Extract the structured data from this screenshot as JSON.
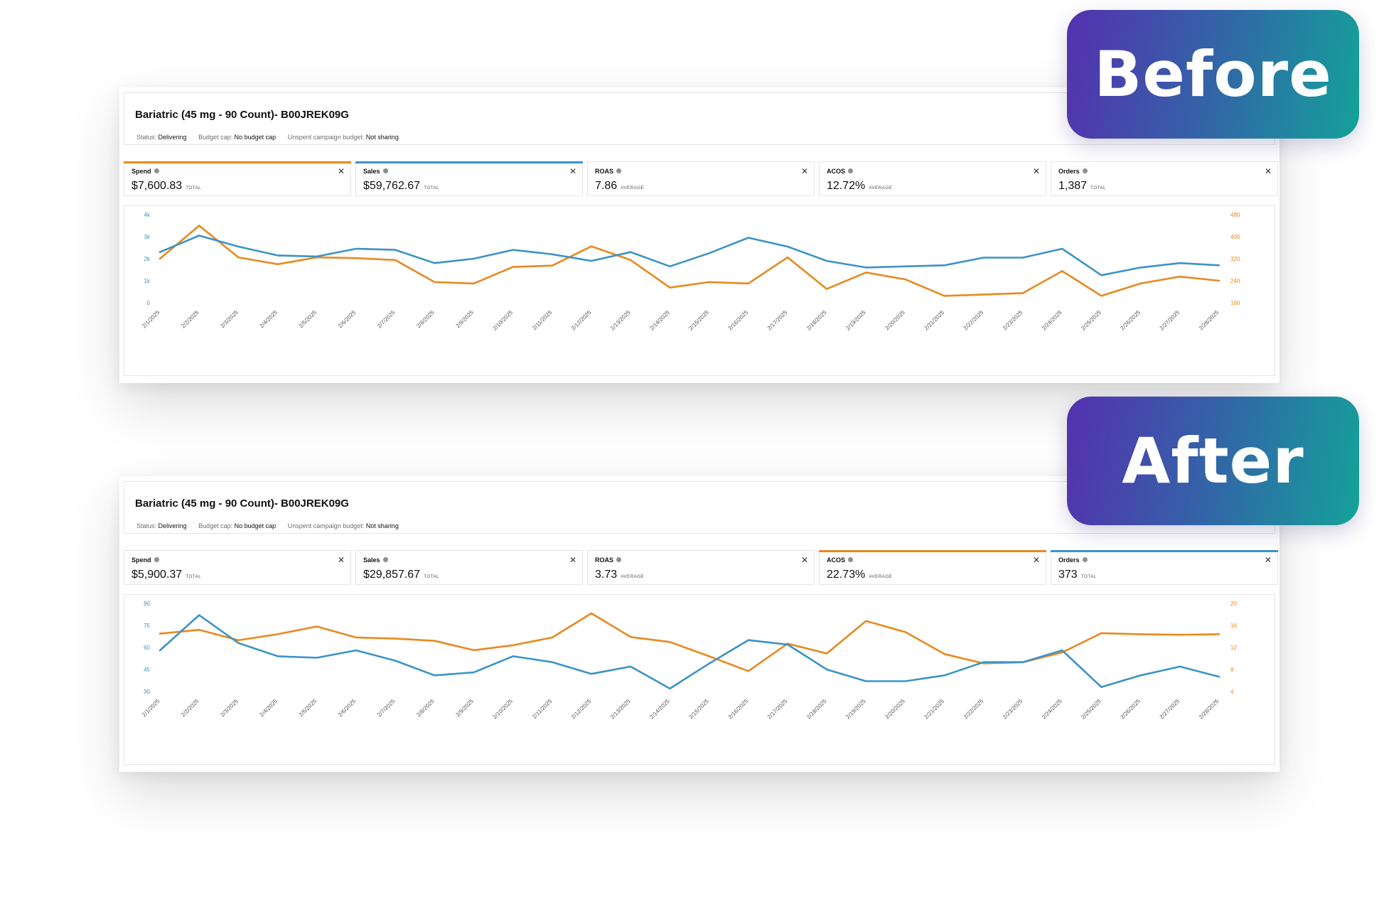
{
  "badges": {
    "before": "Before",
    "after": "After"
  },
  "colors": {
    "orange": "#e8891f",
    "blue": "#3c93c5",
    "badge_start": "#5530b0",
    "badge_end": "#14a29a"
  },
  "panels": [
    {
      "title": "Bariatric (45 mg - 90 Count)- B00JREK09G",
      "status": {
        "status_label": "Status:",
        "status_value": "Delivering",
        "budget_cap_label": "Budget cap:",
        "budget_cap_value": "No budget cap",
        "unspent_label": "Unspent campaign budget:",
        "unspent_value": "Not sharing"
      },
      "metrics": [
        {
          "label": "Spend",
          "value": "$7,600.83",
          "unit": "TOTAL",
          "accent": "orange"
        },
        {
          "label": "Sales",
          "value": "$59,762.67",
          "unit": "TOTAL",
          "accent": "blue"
        },
        {
          "label": "ROAS",
          "value": "7.86",
          "unit": "AVERAGE",
          "accent": ""
        },
        {
          "label": "ACOS",
          "value": "12.72%",
          "unit": "AVERAGE",
          "accent": ""
        },
        {
          "label": "Orders",
          "value": "1,387",
          "unit": "TOTAL",
          "accent": ""
        }
      ]
    },
    {
      "title": "Bariatric (45 mg - 90 Count)- B00JREK09G",
      "status": {
        "status_label": "Status:",
        "status_value": "Delivering",
        "budget_cap_label": "Budget cap:",
        "budget_cap_value": "No budget cap",
        "unspent_label": "Unspent campaign budget:",
        "unspent_value": "Not sharing"
      },
      "metrics": [
        {
          "label": "Spend",
          "value": "$5,900.37",
          "unit": "TOTAL",
          "accent": ""
        },
        {
          "label": "Sales",
          "value": "$29,857.67",
          "unit": "TOTAL",
          "accent": ""
        },
        {
          "label": "ROAS",
          "value": "3.73",
          "unit": "AVERAGE",
          "accent": ""
        },
        {
          "label": "ACOS",
          "value": "22.73%",
          "unit": "AVERAGE",
          "accent": "orange"
        },
        {
          "label": "Orders",
          "value": "373",
          "unit": "TOTAL",
          "accent": "blue"
        }
      ]
    }
  ],
  "chart_data": [
    {
      "type": "line",
      "x": [
        "2/1/2025",
        "2/2/2025",
        "2/3/2025",
        "2/4/2025",
        "2/5/2025",
        "2/6/2025",
        "2/7/2025",
        "2/8/2025",
        "2/9/2025",
        "2/10/2025",
        "2/11/2025",
        "2/12/2025",
        "2/13/2025",
        "2/14/2025",
        "2/15/2025",
        "2/16/2025",
        "2/17/2025",
        "2/18/2025",
        "2/19/2025",
        "2/20/2025",
        "2/21/2025",
        "2/22/2025",
        "2/23/2025",
        "2/24/2025",
        "2/25/2025",
        "2/26/2025",
        "2/27/2025",
        "2/28/2025"
      ],
      "left_axis": {
        "ticks": [
          0,
          1000,
          2000,
          3000,
          4000
        ],
        "tick_labels": [
          "0",
          "1k",
          "2k",
          "3k",
          "4k"
        ],
        "range": [
          0,
          4000
        ],
        "color": "#3c93c5"
      },
      "right_axis": {
        "ticks": [
          160,
          240,
          320,
          400,
          480
        ],
        "tick_labels": [
          "160",
          "240",
          "320",
          "400",
          "480"
        ],
        "range": [
          160,
          480
        ],
        "color": "#e8891f"
      },
      "grid": false,
      "series": [
        {
          "axis": "right",
          "color": "#e8891f",
          "values": [
            320,
            440,
            325,
            300,
            325,
            322,
            315,
            235,
            230,
            290,
            295,
            365,
            315,
            215,
            235,
            230,
            325,
            210,
            270,
            245,
            185,
            190,
            195,
            275,
            185,
            230,
            255,
            240
          ]
        },
        {
          "axis": "left",
          "color": "#3c93c5",
          "values": [
            2300,
            3050,
            2550,
            2150,
            2100,
            2450,
            2400,
            1800,
            2000,
            2400,
            2200,
            1900,
            2300,
            1650,
            2250,
            2950,
            2550,
            1900,
            1600,
            1650,
            1700,
            2050,
            2050,
            2450,
            1250,
            1600,
            1800,
            1700
          ]
        }
      ]
    },
    {
      "type": "line",
      "x": [
        "2/1/2025",
        "2/2/2025",
        "2/3/2025",
        "2/4/2025",
        "2/5/2025",
        "2/6/2025",
        "2/7/2025",
        "2/8/2025",
        "2/9/2025",
        "2/10/2025",
        "2/11/2025",
        "2/12/2025",
        "2/13/2025",
        "2/14/2025",
        "2/15/2025",
        "2/16/2025",
        "2/17/2025",
        "2/18/2025",
        "2/19/2025",
        "2/20/2025",
        "2/21/2025",
        "2/22/2025",
        "2/23/2025",
        "2/24/2025",
        "2/25/2025",
        "2/26/2025",
        "2/27/2025",
        "2/28/2025"
      ],
      "left_axis": {
        "ticks": [
          30,
          45,
          60,
          75,
          90
        ],
        "tick_labels": [
          "30",
          "45",
          "60",
          "75",
          "90"
        ],
        "range": [
          30,
          90
        ],
        "color": "#3c93c5"
      },
      "right_axis": {
        "ticks": [
          4,
          8,
          12,
          16,
          20
        ],
        "tick_labels": [
          "4",
          "8",
          "12",
          "16",
          "20"
        ],
        "range": [
          4,
          20
        ],
        "color": "#e8891f"
      },
      "grid": false,
      "series": [
        {
          "axis": "right",
          "color": "#e8891f",
          "values": [
            14.5,
            15.2,
            13.3,
            14.4,
            15.8,
            13.8,
            13.6,
            13.2,
            11.5,
            12.4,
            13.8,
            18.2,
            13.9,
            13.0,
            10.4,
            7.7,
            12.7,
            10.9,
            16.8,
            14.8,
            10.8,
            9.1,
            9.3,
            11.1,
            14.6,
            14.4,
            14.3,
            14.4
          ]
        },
        {
          "axis": "left",
          "color": "#3c93c5",
          "values": [
            58,
            82,
            63,
            54,
            53,
            58,
            51,
            41,
            43,
            54,
            50,
            42,
            47,
            32,
            49,
            65,
            62,
            45,
            37,
            37,
            41,
            50,
            50,
            58,
            33,
            41,
            47,
            40
          ]
        }
      ]
    }
  ]
}
